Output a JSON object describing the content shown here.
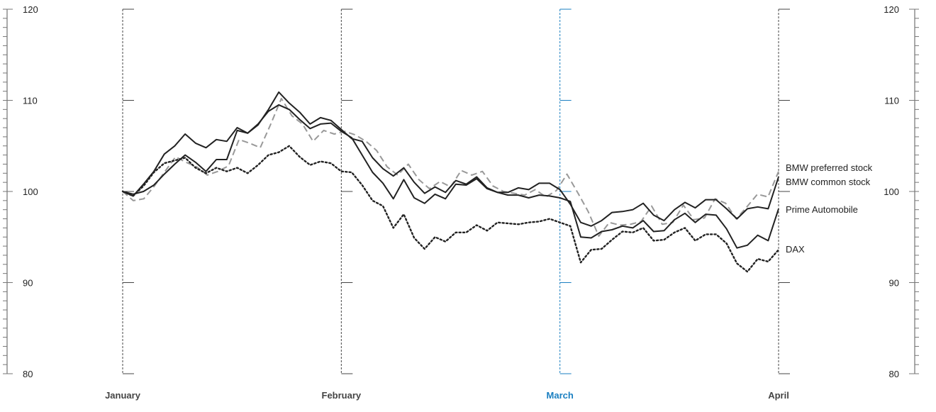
{
  "chart_data": {
    "type": "line",
    "title": "",
    "xlabel": "",
    "ylabel": "",
    "ylim": [
      80,
      120
    ],
    "yticks": [
      80,
      90,
      100,
      110,
      120
    ],
    "months": [
      {
        "label": "January",
        "highlight": false
      },
      {
        "label": "February",
        "highlight": false
      },
      {
        "label": "March",
        "highlight": true
      },
      {
        "label": "April",
        "highlight": false
      }
    ],
    "highlight_color": "#1a7fc1",
    "series": [
      {
        "name": "BMW preferred stock",
        "style": "dashed",
        "color": "#999999",
        "values": [
          100,
          99,
          99.2,
          100.6,
          102.2,
          103.8,
          103.2,
          102.7,
          101.8,
          102.2,
          102.8,
          105.7,
          105.3,
          104.8,
          107.4,
          110.2,
          108.3,
          107.4,
          105.5,
          106.7,
          106.3,
          106.6,
          106.2,
          105.5,
          104.5,
          102.7,
          101.8,
          103.0,
          101.3,
          100.3,
          101.1,
          100.5,
          102.3,
          101.8,
          102.2,
          100.6,
          100.0,
          99.8,
          99.6,
          100.2,
          99.4,
          100.1,
          101.9,
          99.9,
          97.8,
          95.1,
          96.6,
          96.3,
          96.4,
          96.7,
          98.4,
          96.4,
          96.6,
          98.5,
          96.9,
          97.1,
          99.2,
          98.7,
          97.0,
          98.3,
          99.7,
          99.4,
          102.2
        ]
      },
      {
        "name": "BMW common stock",
        "style": "solid",
        "color": "#222222",
        "values": [
          100,
          99.5,
          100.8,
          102.2,
          104.1,
          105.0,
          106.3,
          105.3,
          104.8,
          105.7,
          105.5,
          107.0,
          106.4,
          107.3,
          109.0,
          110.9,
          109.7,
          108.7,
          107.4,
          108.1,
          107.8,
          106.8,
          105.8,
          105.5,
          103.7,
          102.5,
          101.7,
          102.6,
          101.0,
          99.8,
          100.5,
          99.9,
          101.2,
          100.8,
          101.6,
          100.4,
          99.9,
          99.9,
          100.4,
          100.2,
          100.9,
          100.9,
          100.2,
          98.6,
          96.6,
          96.2,
          96.8,
          97.7,
          97.8,
          98.0,
          98.7,
          97.4,
          96.8,
          98.0,
          98.8,
          98.2,
          99.1,
          99.1,
          98.1,
          97.0,
          98.1,
          98.3,
          98.1,
          101.6
        ]
      },
      {
        "name": "Prime Automobile",
        "style": "solid",
        "color": "#222222",
        "values": [
          100,
          99.7,
          100.0,
          100.7,
          101.9,
          103.0,
          104.0,
          103.2,
          102.2,
          103.5,
          103.5,
          106.7,
          106.4,
          107.4,
          108.8,
          109.5,
          109.0,
          107.9,
          106.9,
          107.4,
          107.5,
          106.6,
          105.9,
          104.0,
          102.1,
          100.9,
          99.2,
          101.3,
          99.3,
          98.7,
          99.7,
          99.2,
          100.8,
          100.7,
          101.4,
          100.3,
          99.9,
          99.6,
          99.6,
          99.3,
          99.6,
          99.5,
          99.3,
          98.9,
          95.0,
          94.9,
          95.6,
          95.8,
          96.2,
          96.0,
          96.8,
          95.6,
          95.7,
          96.9,
          97.6,
          96.6,
          97.5,
          97.4,
          95.9,
          93.8,
          94.1,
          95.2,
          94.6,
          98.1
        ]
      },
      {
        "name": "DAX",
        "style": "dotted",
        "color": "#222222",
        "values": [
          100,
          99.5,
          100.6,
          102.1,
          103.1,
          103.4,
          103.7,
          102.6,
          102.0,
          102.6,
          102.2,
          102.6,
          102.0,
          102.9,
          104.0,
          104.3,
          105.0,
          103.8,
          102.9,
          103.3,
          103.1,
          102.2,
          102.1,
          100.7,
          99.0,
          98.4,
          96.0,
          97.5,
          94.9,
          93.7,
          95.0,
          94.5,
          95.5,
          95.5,
          96.3,
          95.7,
          96.6,
          96.5,
          96.4,
          96.6,
          96.7,
          97.0,
          96.6,
          96.2,
          92.2,
          93.6,
          93.7,
          94.7,
          95.6,
          95.5,
          96.0,
          94.6,
          94.7,
          95.5,
          96.0,
          94.6,
          95.3,
          95.3,
          94.3,
          92.1,
          91.2,
          92.6,
          92.3,
          93.6
        ]
      }
    ]
  }
}
